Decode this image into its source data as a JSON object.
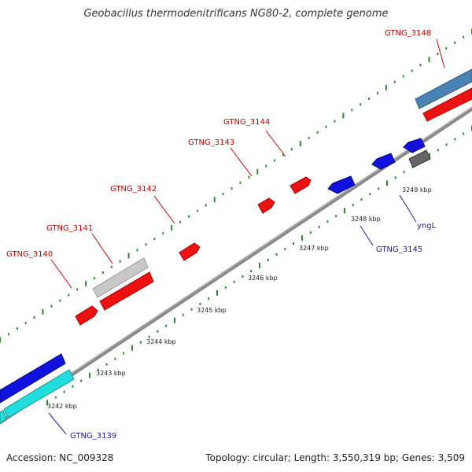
{
  "title": "Geobacillus thermodenitrificans NG80-2, complete genome",
  "footer": {
    "accession": "Accession: NC_009328",
    "summary": "Topology: circular; Length: 3,550,319 bp; Genes: 3,509"
  },
  "colors": {
    "backbone": "#8a8a8a",
    "tick": "#2e8b2e",
    "label_red": "#cc0000",
    "label_blue": "#1a1aaa",
    "red_gene": "#ee1111",
    "blue_gene": "#1111dd",
    "cyan_gene": "#22dddd",
    "gray_gene": "#c8c8c8",
    "dark_gene": "#666666",
    "steel_gene": "#4a82b4"
  },
  "ruler": {
    "labels": [
      "3242 kbp",
      "3243 kbp",
      "3244 kbp",
      "3245 kbp",
      "3246 kbp",
      "3247 kbp",
      "3248 kbp",
      "3249 kbp"
    ]
  },
  "genes": [
    {
      "label": "GTNG_3139",
      "strand": "minus"
    },
    {
      "label": "GTNG_3140",
      "strand": "plus"
    },
    {
      "label": "GTNG_3141",
      "strand": "plus"
    },
    {
      "label": "GTNG_3142",
      "strand": "plus"
    },
    {
      "label": "GTNG_3143",
      "strand": "plus"
    },
    {
      "label": "GTNG_3144",
      "strand": "plus"
    },
    {
      "label": "GTNG_3145",
      "strand": "minus"
    },
    {
      "label": "yngL",
      "strand": "minus"
    },
    {
      "label": "GTNG_3148",
      "strand": "plus"
    }
  ]
}
